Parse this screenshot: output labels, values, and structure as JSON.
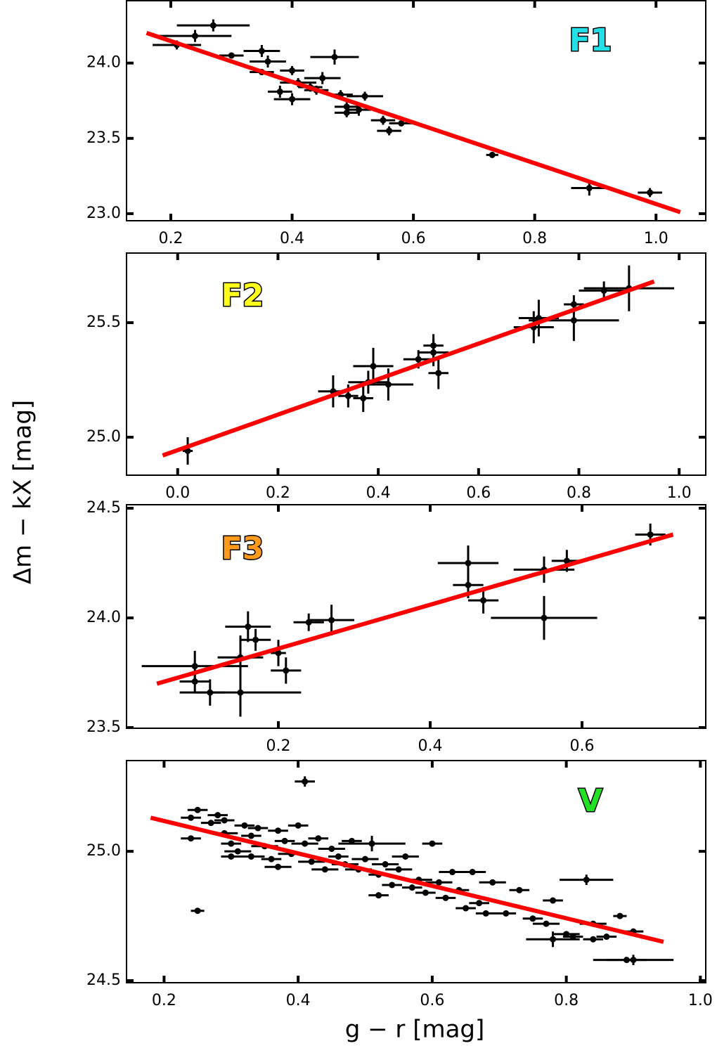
{
  "y_label": "Δm − kX [mag]",
  "x_label": "g − r [mag]",
  "chart_data": [
    {
      "type": "scatter",
      "title": "F1",
      "title_color": "#22e0e8",
      "xlim": [
        0.127,
        1.082
      ],
      "ylim": [
        22.953,
        24.414
      ],
      "xticks": [
        0.2,
        0.4,
        0.6,
        0.8,
        {
          "value": 1.0,
          "label": "1.0"
        }
      ],
      "yticks": [
        {
          "value": 23.0,
          "label": "23.0"
        },
        23.5,
        {
          "value": 24.0,
          "label": "24.0"
        }
      ],
      "points": {
        "color": "#000000",
        "x": [
          0.21,
          0.24,
          0.27,
          0.3,
          0.35,
          0.36,
          0.35,
          0.38,
          0.4,
          0.4,
          0.41,
          0.43,
          0.45,
          0.44,
          0.47,
          0.48,
          0.49,
          0.49,
          0.51,
          0.52,
          0.55,
          0.56,
          0.58,
          0.73,
          0.89,
          0.99
        ],
        "y": [
          24.12,
          24.18,
          24.25,
          24.05,
          24.08,
          24.01,
          23.94,
          23.81,
          23.95,
          23.76,
          23.87,
          23.84,
          23.9,
          23.82,
          24.04,
          23.79,
          23.71,
          23.67,
          23.69,
          23.78,
          23.62,
          23.55,
          23.6,
          23.39,
          23.17,
          23.14
        ],
        "xerr": [
          0.04,
          0.06,
          0.06,
          0.02,
          0.03,
          0.03,
          0.02,
          0.02,
          0.02,
          0.03,
          0.03,
          0.02,
          0.03,
          0.02,
          0.04,
          0.02,
          0.02,
          0.02,
          0.02,
          0.03,
          0.02,
          0.02,
          0.02,
          0.01,
          0.03,
          0.02
        ],
        "yerr": [
          0.03,
          0.04,
          0.04,
          0.02,
          0.04,
          0.04,
          0.02,
          0.04,
          0.03,
          0.04,
          0.03,
          0.03,
          0.04,
          0.03,
          0.05,
          0.03,
          0.03,
          0.03,
          0.04,
          0.03,
          0.03,
          0.03,
          0.02,
          0.02,
          0.05,
          0.03
        ]
      },
      "fit": {
        "color": "#ff0000",
        "x": [
          0.16,
          1.04
        ],
        "y": [
          24.2,
          23.01
        ]
      }
    },
    {
      "type": "scatter",
      "title": "F2",
      "title_color": "#ffff1a",
      "xlim": [
        -0.102,
        1.053
      ],
      "ylim": [
        24.834,
        25.804
      ],
      "xticks": [
        {
          "value": 0.0,
          "label": "0.0"
        },
        0.2,
        0.4,
        0.6,
        0.8,
        {
          "value": 1.0,
          "label": "1.0"
        }
      ],
      "yticks": [
        {
          "value": 25.0,
          "label": "25.0"
        },
        25.5
      ],
      "points": {
        "color": "#000000",
        "x": [
          0.02,
          0.31,
          0.34,
          0.37,
          0.38,
          0.39,
          0.42,
          0.48,
          0.51,
          0.51,
          0.52,
          0.71,
          0.72,
          0.79,
          0.79,
          0.85,
          0.9
        ],
        "y": [
          24.94,
          25.2,
          25.18,
          25.17,
          25.24,
          25.31,
          25.23,
          25.34,
          25.4,
          25.37,
          25.28,
          25.48,
          25.52,
          25.58,
          25.51,
          25.64,
          25.65
        ],
        "xerr": [
          0.01,
          0.03,
          0.02,
          0.02,
          0.04,
          0.04,
          0.05,
          0.03,
          0.02,
          0.03,
          0.02,
          0.04,
          0.04,
          0.02,
          0.09,
          0.05,
          0.09
        ],
        "yerr": [
          0.06,
          0.07,
          0.05,
          0.06,
          0.05,
          0.08,
          0.07,
          0.04,
          0.05,
          0.06,
          0.07,
          0.07,
          0.08,
          0.04,
          0.09,
          0.04,
          0.1
        ]
      },
      "fit": {
        "color": "#ff0000",
        "x": [
          -0.03,
          0.95
        ],
        "y": [
          24.92,
          25.68
        ]
      }
    },
    {
      "type": "scatter",
      "title": "F3",
      "title_color": "#ff9a1a",
      "xlim": [
        0.0,
        0.763
      ],
      "ylim": [
        23.497,
        24.516
      ],
      "xticks": [
        0.2,
        0.4,
        0.6
      ],
      "yticks": [
        23.5,
        {
          "value": 24.0,
          "label": "24.0"
        },
        24.5
      ],
      "points": {
        "color": "#000000",
        "x": [
          0.09,
          0.09,
          0.11,
          0.15,
          0.15,
          0.16,
          0.17,
          0.2,
          0.21,
          0.24,
          0.27,
          0.45,
          0.45,
          0.47,
          0.55,
          0.55,
          0.58,
          0.69
        ],
        "y": [
          23.78,
          23.71,
          23.66,
          23.82,
          23.66,
          23.96,
          23.9,
          23.84,
          23.76,
          23.98,
          23.99,
          24.25,
          24.15,
          24.08,
          24.22,
          24.0,
          24.26,
          24.38
        ],
        "xerr": [
          0.07,
          0.02,
          0.02,
          0.03,
          0.08,
          0.03,
          0.02,
          0.01,
          0.02,
          0.02,
          0.03,
          0.04,
          0.02,
          0.02,
          0.04,
          0.07,
          0.02,
          0.02
        ],
        "yerr": [
          0.07,
          0.05,
          0.06,
          0.1,
          0.11,
          0.07,
          0.05,
          0.06,
          0.06,
          0.04,
          0.07,
          0.08,
          0.06,
          0.06,
          0.06,
          0.1,
          0.05,
          0.05
        ]
      },
      "fit": {
        "color": "#ff0000",
        "x": [
          0.04,
          0.72
        ],
        "y": [
          23.7,
          24.38
        ]
      }
    },
    {
      "type": "scatter",
      "title": "V",
      "title_color": "#22e022",
      "xlim": [
        0.144,
        1.008
      ],
      "ylim": [
        24.492,
        25.351
      ],
      "xticks": [
        0.2,
        0.4,
        0.6,
        0.8,
        {
          "value": 1.0,
          "label": "1.0"
        }
      ],
      "yticks": [
        24.5,
        {
          "value": 25.0,
          "label": "25.0"
        }
      ],
      "points": {
        "color": "#000000",
        "x": [
          0.24,
          0.24,
          0.25,
          0.25,
          0.27,
          0.28,
          0.29,
          0.29,
          0.3,
          0.3,
          0.31,
          0.32,
          0.33,
          0.33,
          0.34,
          0.35,
          0.36,
          0.37,
          0.37,
          0.38,
          0.39,
          0.4,
          0.41,
          0.41,
          0.42,
          0.43,
          0.44,
          0.45,
          0.46,
          0.47,
          0.48,
          0.49,
          0.5,
          0.51,
          0.52,
          0.52,
          0.53,
          0.54,
          0.55,
          0.56,
          0.57,
          0.58,
          0.59,
          0.6,
          0.61,
          0.62,
          0.63,
          0.64,
          0.65,
          0.66,
          0.67,
          0.68,
          0.69,
          0.71,
          0.73,
          0.75,
          0.77,
          0.78,
          0.78,
          0.8,
          0.81,
          0.83,
          0.84,
          0.84,
          0.86,
          0.88,
          0.89,
          0.9,
          0.9
        ],
        "y": [
          25.05,
          25.13,
          25.16,
          24.77,
          25.11,
          25.14,
          25.12,
          25.07,
          25.03,
          24.98,
          25.0,
          25.1,
          25.06,
          24.98,
          25.09,
          25.02,
          24.97,
          25.08,
          24.94,
          25.04,
          24.99,
          25.1,
          25.27,
          25.03,
          24.96,
          25.05,
          24.93,
          25.01,
          24.98,
          24.95,
          25.04,
          24.93,
          24.97,
          25.03,
          24.91,
          24.83,
          24.95,
          24.87,
          24.93,
          24.98,
          24.86,
          24.89,
          24.84,
          25.03,
          24.88,
          24.82,
          24.92,
          24.85,
          24.78,
          24.92,
          24.8,
          24.76,
          24.88,
          24.76,
          24.85,
          24.74,
          24.72,
          24.81,
          24.66,
          24.68,
          24.67,
          24.89,
          24.72,
          24.66,
          24.67,
          24.75,
          24.58,
          24.58,
          24.69
        ],
        "xerr": [
          0.015,
          0.015,
          0.015,
          0.01,
          0.015,
          0.015,
          0.015,
          0.02,
          0.015,
          0.015,
          0.02,
          0.015,
          0.015,
          0.02,
          0.015,
          0.02,
          0.015,
          0.015,
          0.02,
          0.015,
          0.02,
          0.015,
          0.015,
          0.02,
          0.02,
          0.015,
          0.02,
          0.02,
          0.015,
          0.02,
          0.015,
          0.02,
          0.02,
          0.05,
          0.015,
          0.015,
          0.02,
          0.015,
          0.02,
          0.02,
          0.015,
          0.02,
          0.015,
          0.015,
          0.02,
          0.015,
          0.02,
          0.015,
          0.015,
          0.02,
          0.015,
          0.015,
          0.02,
          0.015,
          0.015,
          0.015,
          0.02,
          0.015,
          0.04,
          0.02,
          0.015,
          0.04,
          0.02,
          0.015,
          0.015,
          0.01,
          0.03,
          0.06,
          0.015
        ],
        "yerr": [
          0.01,
          0.01,
          0.01,
          0.01,
          0.01,
          0.01,
          0.01,
          0.01,
          0.01,
          0.01,
          0.01,
          0.01,
          0.01,
          0.01,
          0.01,
          0.01,
          0.01,
          0.01,
          0.01,
          0.01,
          0.01,
          0.01,
          0.02,
          0.01,
          0.01,
          0.01,
          0.01,
          0.01,
          0.01,
          0.01,
          0.01,
          0.01,
          0.01,
          0.03,
          0.01,
          0.01,
          0.01,
          0.01,
          0.01,
          0.01,
          0.01,
          0.01,
          0.01,
          0.01,
          0.01,
          0.01,
          0.01,
          0.01,
          0.01,
          0.01,
          0.01,
          0.01,
          0.01,
          0.01,
          0.01,
          0.01,
          0.01,
          0.01,
          0.03,
          0.01,
          0.01,
          0.02,
          0.01,
          0.01,
          0.01,
          0.01,
          0.01,
          0.02,
          0.01
        ]
      },
      "fit": {
        "color": "#ff0000",
        "x": [
          0.18,
          0.945
        ],
        "y": [
          25.13,
          24.65
        ]
      }
    }
  ]
}
